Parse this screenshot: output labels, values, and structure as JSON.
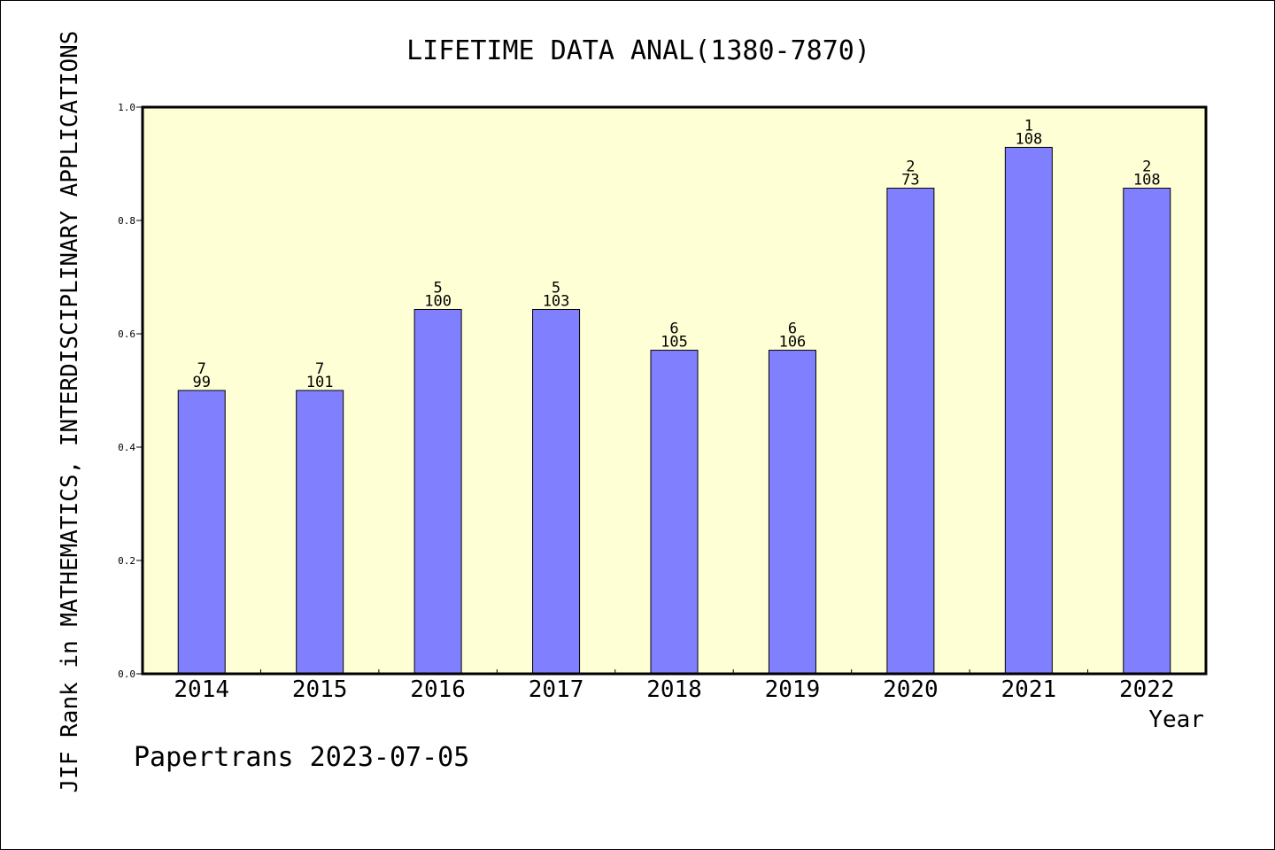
{
  "chart_data": {
    "type": "bar",
    "title": "LIFETIME DATA ANAL(1380-7870)",
    "ylabel": "JIF Rank in MATHEMATICS, INTERDISCIPLINARY APPLICATIONS",
    "xlabel": "Year",
    "categories": [
      "2014",
      "2015",
      "2016",
      "2017",
      "2018",
      "2019",
      "2020",
      "2021",
      "2022"
    ],
    "values": [
      0.5,
      0.5,
      0.643,
      0.643,
      0.571,
      0.571,
      0.857,
      0.929,
      0.857
    ],
    "rank_labels": [
      "7",
      "7",
      "5",
      "5",
      "6",
      "6",
      "2",
      "1",
      "2"
    ],
    "total_labels": [
      "99",
      "101",
      "100",
      "103",
      "105",
      "106",
      "73",
      "108",
      "108"
    ],
    "ylim": [
      0,
      1
    ],
    "yticks": [
      "0.0",
      "0.2",
      "0.4",
      "0.6",
      "0.8",
      "1.0"
    ],
    "grid": false,
    "colors": {
      "plot_bg": "#ffffd5",
      "bar": "#8080ff"
    }
  },
  "footer": {
    "text": "Papertrans 2023-07-05"
  }
}
